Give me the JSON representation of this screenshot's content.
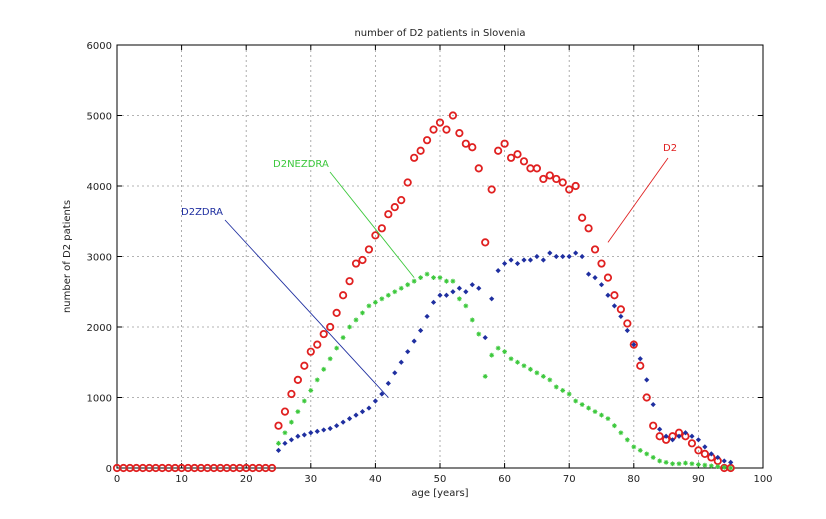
{
  "chart_data": {
    "type": "scatter",
    "title": "number of D2 patients in Slovenia",
    "xlabel": "age [years]",
    "ylabel": "number of D2 patients",
    "xlim": [
      0,
      100
    ],
    "ylim": [
      0,
      6000
    ],
    "xticks": [
      0,
      10,
      20,
      30,
      40,
      50,
      60,
      70,
      80,
      90,
      100
    ],
    "yticks": [
      0,
      1000,
      2000,
      3000,
      4000,
      5000,
      6000
    ],
    "grid": true,
    "series": [
      {
        "name": "D2",
        "color": "#e02020",
        "marker": "circle",
        "x": [
          0,
          1,
          2,
          3,
          4,
          5,
          6,
          7,
          8,
          9,
          10,
          11,
          12,
          13,
          14,
          15,
          16,
          17,
          18,
          19,
          20,
          21,
          22,
          23,
          24,
          25,
          26,
          27,
          28,
          29,
          30,
          31,
          32,
          33,
          34,
          35,
          36,
          37,
          38,
          39,
          40,
          41,
          42,
          43,
          44,
          45,
          46,
          47,
          48,
          49,
          50,
          51,
          52,
          53,
          54,
          55,
          56,
          57,
          58,
          59,
          60,
          61,
          62,
          63,
          64,
          65,
          66,
          67,
          68,
          69,
          70,
          71,
          72,
          73,
          74,
          75,
          76,
          77,
          78,
          79,
          80,
          81,
          82,
          83,
          84,
          85,
          86,
          87,
          88,
          89,
          90,
          91,
          92,
          93,
          94,
          95
        ],
        "y": [
          0,
          0,
          0,
          0,
          0,
          0,
          0,
          0,
          0,
          0,
          0,
          0,
          0,
          0,
          0,
          0,
          0,
          0,
          0,
          0,
          0,
          0,
          0,
          0,
          0,
          600,
          800,
          1050,
          1250,
          1450,
          1650,
          1750,
          1900,
          2000,
          2200,
          2450,
          2650,
          2900,
          2950,
          3100,
          3300,
          3400,
          3600,
          3700,
          3800,
          4050,
          4400,
          4500,
          4650,
          4800,
          4900,
          4800,
          5000,
          4750,
          4600,
          4550,
          4250,
          3200,
          3950,
          4500,
          4600,
          4400,
          4450,
          4350,
          4250,
          4250,
          4100,
          4150,
          4100,
          4050,
          3950,
          4000,
          3550,
          3400,
          3100,
          2900,
          2700,
          2450,
          2250,
          2050,
          1750,
          1450,
          1000,
          600,
          450,
          400,
          450,
          500,
          450,
          350,
          250,
          200,
          150,
          100,
          0,
          0
        ],
        "label_points": "all"
      },
      {
        "name": "D2ZDRA",
        "color": "#1f2fa0",
        "marker": "diamond",
        "x": [
          25,
          26,
          27,
          28,
          29,
          30,
          31,
          32,
          33,
          34,
          35,
          36,
          37,
          38,
          39,
          40,
          41,
          42,
          43,
          44,
          45,
          46,
          47,
          48,
          49,
          50,
          51,
          52,
          53,
          54,
          55,
          56,
          57,
          58,
          59,
          60,
          61,
          62,
          63,
          64,
          65,
          66,
          67,
          68,
          69,
          70,
          71,
          72,
          73,
          74,
          75,
          76,
          77,
          78,
          79,
          80,
          81,
          82,
          83,
          84,
          85,
          86,
          87,
          88,
          89,
          90,
          91,
          92,
          93,
          94,
          95
        ],
        "y": [
          250,
          350,
          400,
          450,
          470,
          500,
          520,
          540,
          560,
          600,
          650,
          700,
          750,
          800,
          850,
          950,
          1050,
          1200,
          1350,
          1500,
          1650,
          1800,
          1950,
          2150,
          2350,
          2450,
          2450,
          2500,
          2550,
          2500,
          2600,
          2550,
          1850,
          2400,
          2800,
          2900,
          2950,
          2900,
          2950,
          2950,
          3000,
          2950,
          3050,
          3000,
          3000,
          3000,
          3050,
          3000,
          2750,
          2700,
          2600,
          2450,
          2300,
          2150,
          1950,
          1750,
          1550,
          1250,
          900,
          550,
          450,
          400,
          450,
          500,
          450,
          400,
          300,
          200,
          150,
          100,
          80
        ]
      },
      {
        "name": "D2NEZDRA",
        "color": "#3cc83c",
        "marker": "star",
        "x": [
          25,
          26,
          27,
          28,
          29,
          30,
          31,
          32,
          33,
          34,
          35,
          36,
          37,
          38,
          39,
          40,
          41,
          42,
          43,
          44,
          45,
          46,
          47,
          48,
          49,
          50,
          51,
          52,
          53,
          54,
          55,
          56,
          57,
          58,
          59,
          60,
          61,
          62,
          63,
          64,
          65,
          66,
          67,
          68,
          69,
          70,
          71,
          72,
          73,
          74,
          75,
          76,
          77,
          78,
          79,
          80,
          81,
          82,
          83,
          84,
          85,
          86,
          87,
          88,
          89,
          90,
          91,
          92,
          93,
          94,
          95
        ],
        "y": [
          350,
          500,
          650,
          800,
          950,
          1100,
          1250,
          1400,
          1550,
          1700,
          1850,
          2000,
          2100,
          2200,
          2300,
          2350,
          2400,
          2450,
          2500,
          2550,
          2600,
          2650,
          2700,
          2750,
          2700,
          2700,
          2650,
          2650,
          2400,
          2300,
          2100,
          1900,
          1300,
          1600,
          1700,
          1650,
          1550,
          1500,
          1450,
          1400,
          1350,
          1300,
          1250,
          1150,
          1100,
          1050,
          950,
          900,
          850,
          800,
          750,
          700,
          600,
          500,
          400,
          300,
          250,
          200,
          150,
          100,
          80,
          60,
          60,
          70,
          60,
          50,
          40,
          30,
          20,
          10,
          0
        ]
      }
    ],
    "annotations": [
      {
        "text": "D2",
        "color": "#e02020",
        "target": [
          76,
          3200
        ],
        "anchor": "top-right"
      },
      {
        "text": "D2NEZDRA",
        "color": "#3cc83c",
        "target": [
          46,
          2700
        ],
        "anchor": "upper-middle"
      },
      {
        "text": "D2ZDRA",
        "color": "#1f2fa0",
        "target": [
          42,
          1000
        ],
        "anchor": "middle-left"
      }
    ]
  }
}
